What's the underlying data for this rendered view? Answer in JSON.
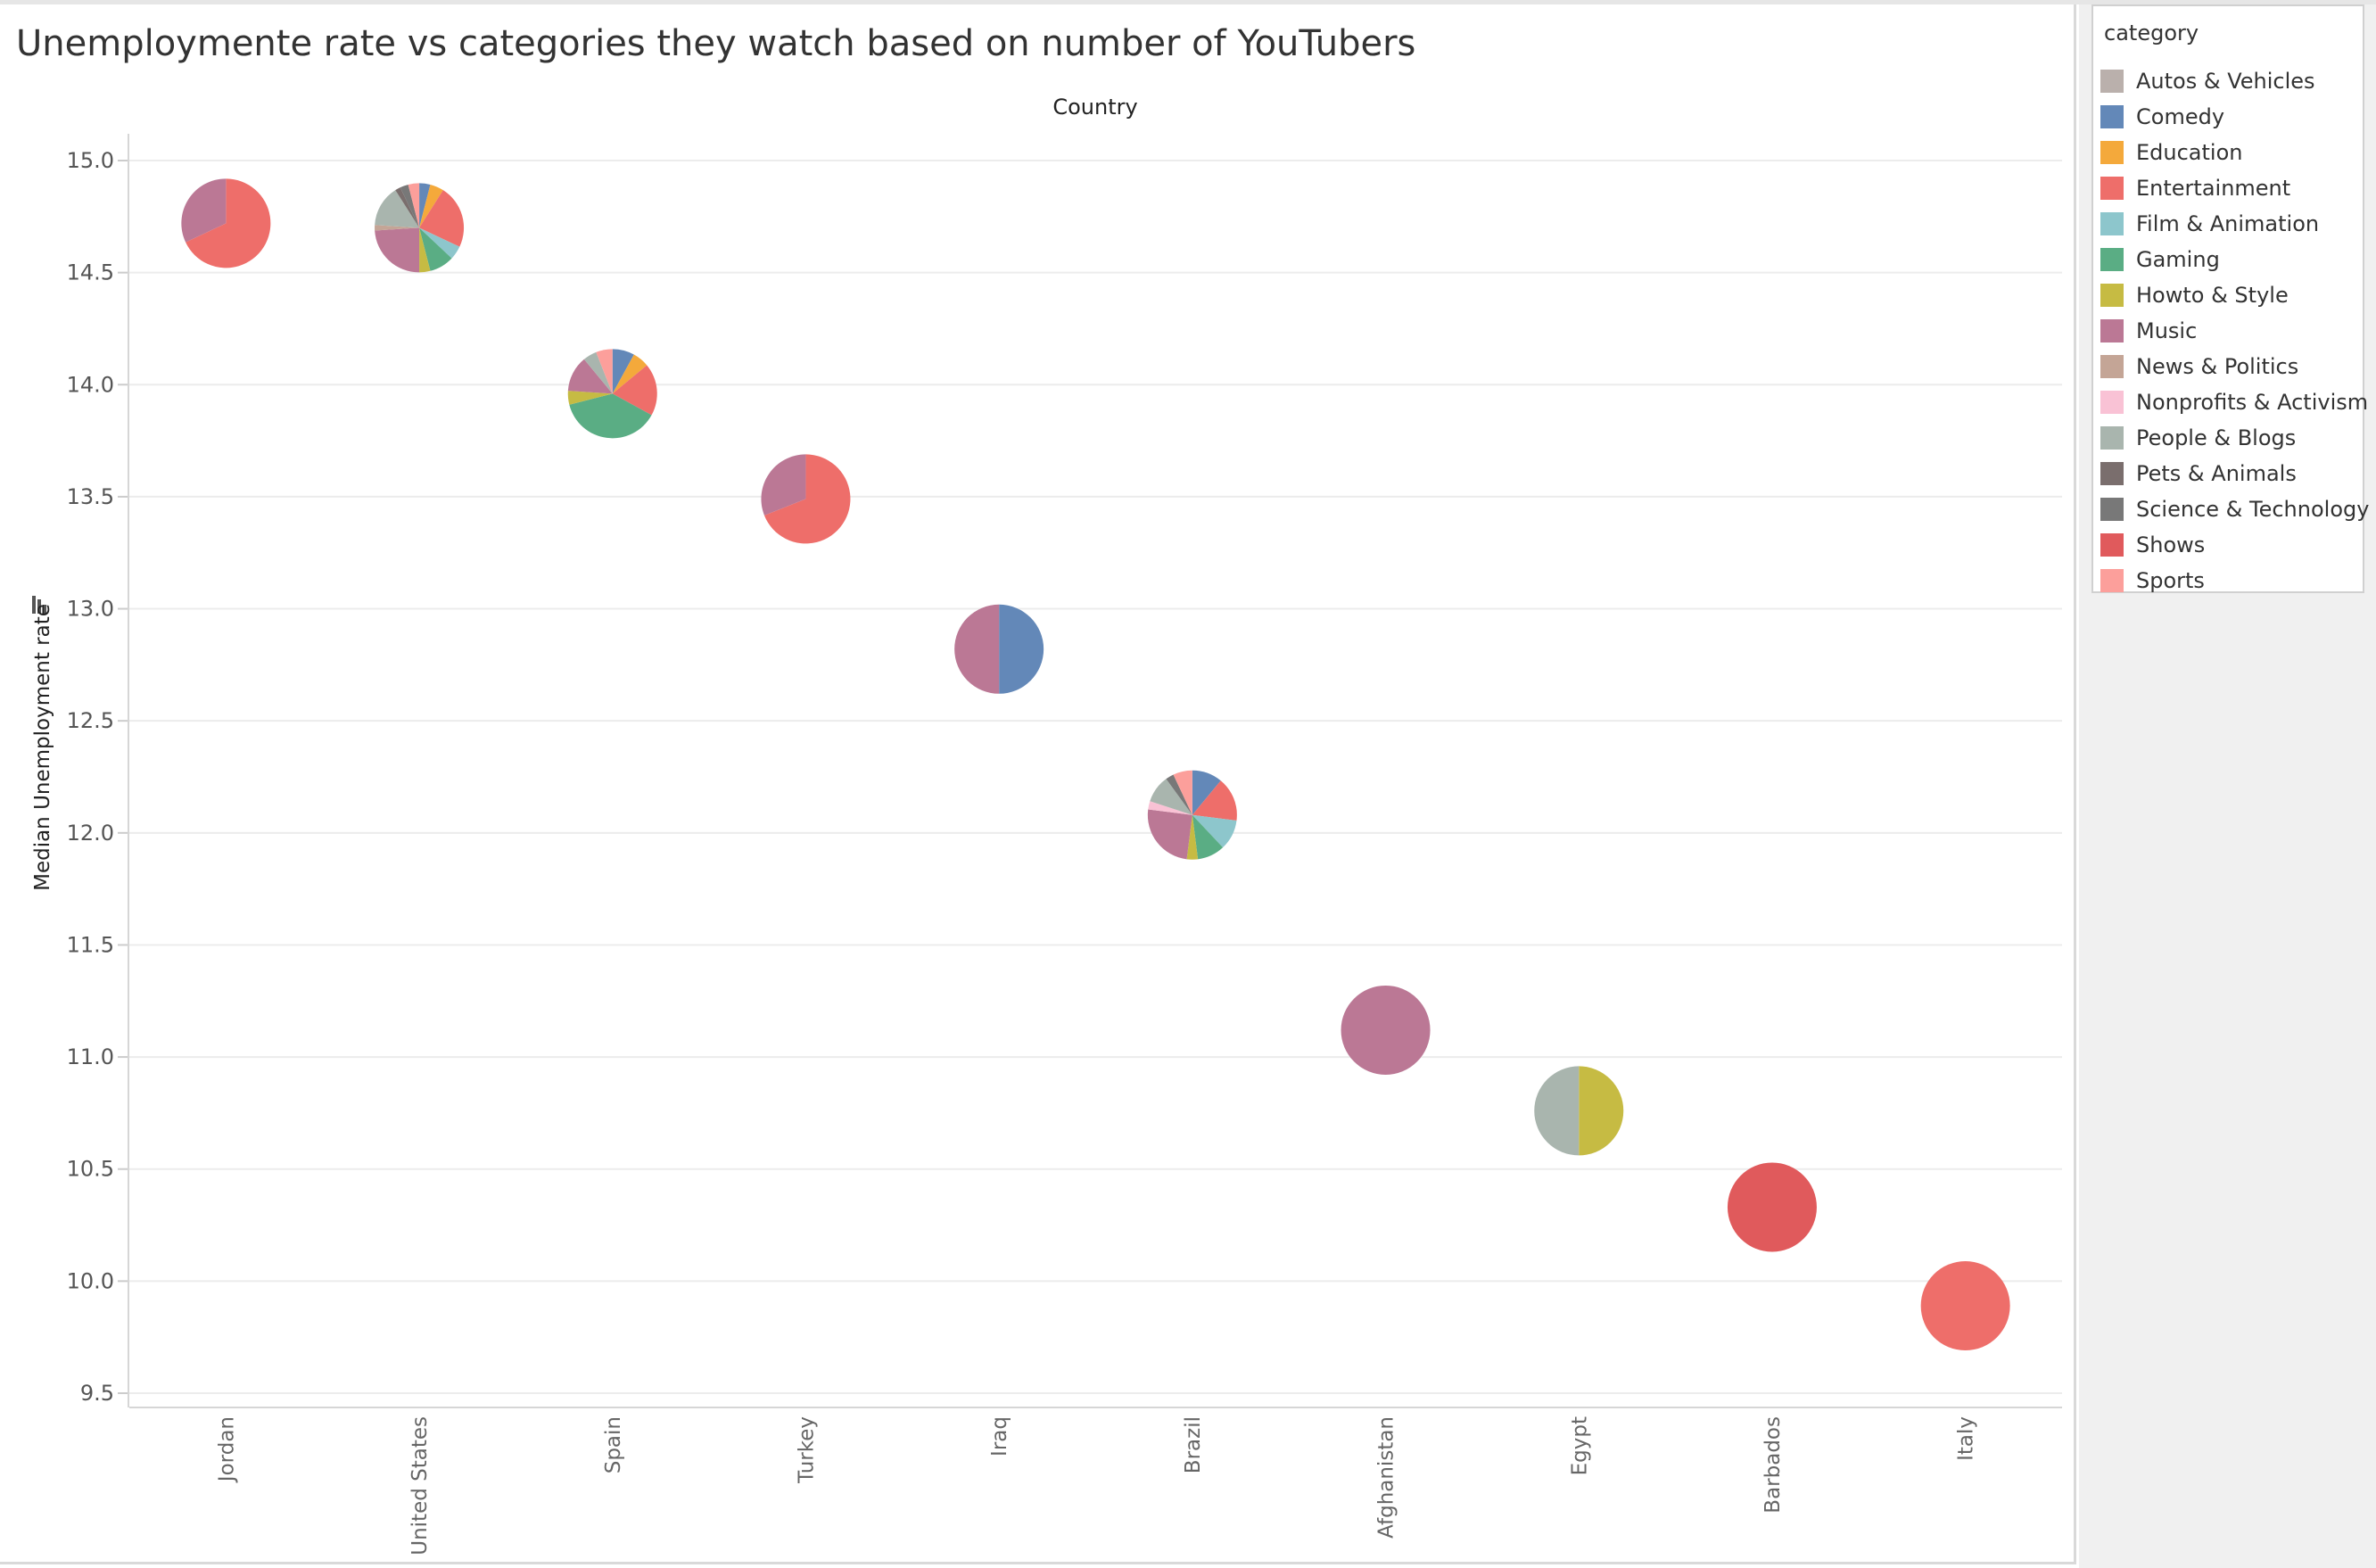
{
  "chart_data": {
    "type": "scatter",
    "subtype": "pie-markers",
    "title": "Unemploymente rate vs categories they watch based on number of YouTubers",
    "column_header": "Country",
    "xlabel": "",
    "ylabel": "Median Unemployment rate",
    "ylim": [
      9.5,
      15.0
    ],
    "y_ticks": [
      "15.0",
      "14.5",
      "14.0",
      "13.5",
      "13.0",
      "12.5",
      "12.0",
      "11.5",
      "11.0",
      "10.5",
      "10.0",
      "9.5"
    ],
    "y_tick_values": [
      15.0,
      14.5,
      14.0,
      13.5,
      13.0,
      12.5,
      12.0,
      11.5,
      11.0,
      10.5,
      10.0,
      9.5
    ],
    "grid": "horizontal",
    "legend_placement": "right",
    "categories": [
      "Jordan",
      "United States",
      "Spain",
      "Turkey",
      "Iraq",
      "Brazil",
      "Afghanistan",
      "Egypt",
      "Barbados",
      "Italy"
    ],
    "points": [
      {
        "country": "Jordan",
        "y": 14.72,
        "slices": [
          {
            "category": "Entertainment",
            "share": 0.68
          },
          {
            "category": "Music",
            "share": 0.32
          }
        ]
      },
      {
        "country": "United States",
        "y": 14.7,
        "slices": [
          {
            "category": "Comedy",
            "share": 0.04
          },
          {
            "category": "Education",
            "share": 0.05
          },
          {
            "category": "Entertainment",
            "share": 0.23
          },
          {
            "category": "Film & Animation",
            "share": 0.05
          },
          {
            "category": "Gaming",
            "share": 0.09
          },
          {
            "category": "Howto & Style",
            "share": 0.04
          },
          {
            "category": "Music",
            "share": 0.24
          },
          {
            "category": "News & Politics",
            "share": 0.02
          },
          {
            "category": "People & Blogs",
            "share": 0.15
          },
          {
            "category": "Pets & Animals",
            "share": 0.02
          },
          {
            "category": "Science & Technology",
            "share": 0.03
          },
          {
            "category": "Sports",
            "share": 0.04
          }
        ]
      },
      {
        "country": "Spain",
        "y": 13.96,
        "slices": [
          {
            "category": "Comedy",
            "share": 0.08
          },
          {
            "category": "Education",
            "share": 0.06
          },
          {
            "category": "Entertainment",
            "share": 0.19
          },
          {
            "category": "Gaming",
            "share": 0.38
          },
          {
            "category": "Howto & Style",
            "share": 0.05
          },
          {
            "category": "Music",
            "share": 0.13
          },
          {
            "category": "People & Blogs",
            "share": 0.05
          },
          {
            "category": "Sports",
            "share": 0.06
          }
        ]
      },
      {
        "country": "Turkey",
        "y": 13.49,
        "slices": [
          {
            "category": "Entertainment",
            "share": 0.69
          },
          {
            "category": "Music",
            "share": 0.31
          }
        ]
      },
      {
        "country": "Iraq",
        "y": 12.82,
        "slices": [
          {
            "category": "Comedy",
            "share": 0.5
          },
          {
            "category": "Music",
            "share": 0.5
          }
        ]
      },
      {
        "country": "Brazil",
        "y": 12.08,
        "slices": [
          {
            "category": "Comedy",
            "share": 0.11
          },
          {
            "category": "Entertainment",
            "share": 0.16
          },
          {
            "category": "Film & Animation",
            "share": 0.11
          },
          {
            "category": "Gaming",
            "share": 0.1
          },
          {
            "category": "Howto & Style",
            "share": 0.04
          },
          {
            "category": "Music",
            "share": 0.25
          },
          {
            "category": "Nonprofits & Activism",
            "share": 0.03
          },
          {
            "category": "People & Blogs",
            "share": 0.1
          },
          {
            "category": "Science & Technology",
            "share": 0.03
          },
          {
            "category": "Sports",
            "share": 0.07
          }
        ]
      },
      {
        "country": "Afghanistan",
        "y": 11.12,
        "slices": [
          {
            "category": "Music",
            "share": 1.0
          }
        ]
      },
      {
        "country": "Egypt",
        "y": 10.76,
        "slices": [
          {
            "category": "Howto & Style",
            "share": 0.5
          },
          {
            "category": "People & Blogs",
            "share": 0.5
          }
        ]
      },
      {
        "country": "Barbados",
        "y": 10.33,
        "slices": [
          {
            "category": "Shows",
            "share": 1.0
          }
        ]
      },
      {
        "country": "Italy",
        "y": 9.89,
        "slices": [
          {
            "category": "Entertainment",
            "share": 1.0
          }
        ]
      }
    ]
  },
  "legend": {
    "title": "category",
    "items": [
      {
        "label": "Autos & Vehicles",
        "color": "#bab0ac"
      },
      {
        "label": "Comedy",
        "color": "#6388b8"
      },
      {
        "label": "Education",
        "color": "#f4a93b"
      },
      {
        "label": "Entertainment",
        "color": "#ee6e6a"
      },
      {
        "label": "Film & Animation",
        "color": "#8dc6cc"
      },
      {
        "label": "Gaming",
        "color": "#5aad84"
      },
      {
        "label": "Howto & Style",
        "color": "#c6bb43"
      },
      {
        "label": "Music",
        "color": "#bb7895"
      },
      {
        "label": "News & Politics",
        "color": "#c4a596"
      },
      {
        "label": "Nonprofits & Activism",
        "color": "#f9c2d5"
      },
      {
        "label": "People & Blogs",
        "color": "#a9b5ae"
      },
      {
        "label": "Pets & Animals",
        "color": "#7a6e6d"
      },
      {
        "label": "Science & Technology",
        "color": "#787878"
      },
      {
        "label": "Shows",
        "color": "#e05a5c"
      },
      {
        "label": "Sports",
        "color": "#fc9f9b"
      }
    ]
  }
}
